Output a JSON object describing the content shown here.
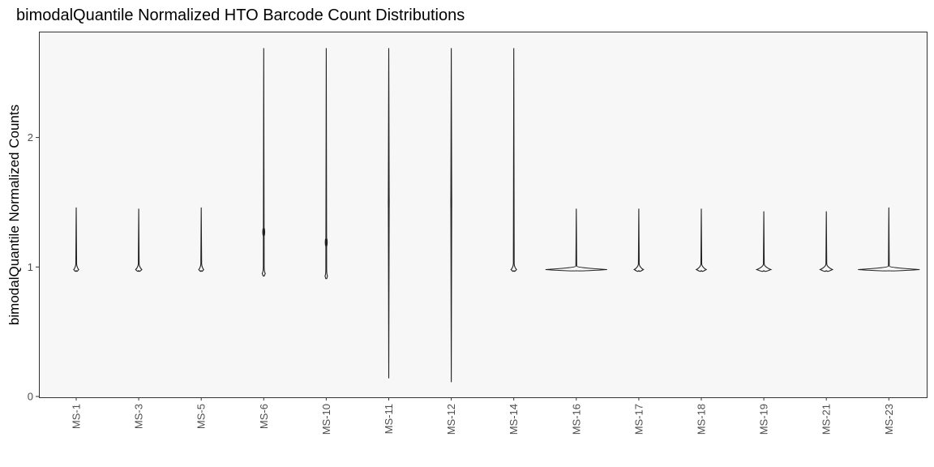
{
  "chart_data": {
    "type": "violin",
    "title": "bimodalQuantile Normalized HTO Barcode Count Distributions",
    "xlabel": "",
    "ylabel": "bimodalQuantile Normalized Counts",
    "ylim": [
      0,
      2.8
    ],
    "yticks": [
      0,
      1,
      2
    ],
    "grid": false,
    "panel_background": "#f7f7f7",
    "categories": [
      "MS-1",
      "MS-3",
      "MS-5",
      "MS-6",
      "MS-10",
      "MS-11",
      "MS-12",
      "MS-14",
      "MS-16",
      "MS-17",
      "MS-18",
      "MS-19",
      "MS-21",
      "MS-23"
    ],
    "distributions": [
      {
        "category": "MS-1",
        "min": 0.97,
        "max": 1.46,
        "mode": 0.98,
        "width": 0.08,
        "mode2": null
      },
      {
        "category": "MS-3",
        "min": 0.97,
        "max": 1.45,
        "mode": 0.98,
        "width": 0.1,
        "mode2": null
      },
      {
        "category": "MS-5",
        "min": 0.97,
        "max": 1.46,
        "mode": 0.98,
        "width": 0.08,
        "mode2": null
      },
      {
        "category": "MS-6",
        "min": 0.93,
        "max": 2.69,
        "mode": 0.95,
        "width": 0.05,
        "mode2": 1.27
      },
      {
        "category": "MS-10",
        "min": 0.91,
        "max": 2.69,
        "mode": 0.93,
        "width": 0.04,
        "mode2": 1.19
      },
      {
        "category": "MS-11",
        "min": 0.14,
        "max": 2.69,
        "mode": 1.5,
        "width": 0.01,
        "mode2": null
      },
      {
        "category": "MS-12",
        "min": 0.11,
        "max": 2.69,
        "mode": 1.5,
        "width": 0.01,
        "mode2": null
      },
      {
        "category": "MS-14",
        "min": 0.97,
        "max": 2.69,
        "mode": 0.98,
        "width": 0.09,
        "mode2": null
      },
      {
        "category": "MS-16",
        "min": 0.97,
        "max": 1.45,
        "mode": 0.98,
        "width": 1.0,
        "mode2": null
      },
      {
        "category": "MS-17",
        "min": 0.97,
        "max": 1.45,
        "mode": 0.98,
        "width": 0.15,
        "mode2": null
      },
      {
        "category": "MS-18",
        "min": 0.97,
        "max": 1.45,
        "mode": 0.98,
        "width": 0.16,
        "mode2": null
      },
      {
        "category": "MS-19",
        "min": 0.97,
        "max": 1.43,
        "mode": 0.98,
        "width": 0.23,
        "mode2": null
      },
      {
        "category": "MS-21",
        "min": 0.97,
        "max": 1.43,
        "mode": 0.98,
        "width": 0.2,
        "mode2": null
      },
      {
        "category": "MS-23",
        "min": 0.97,
        "max": 1.46,
        "mode": 0.98,
        "width": 1.0,
        "mode2": null
      }
    ]
  }
}
